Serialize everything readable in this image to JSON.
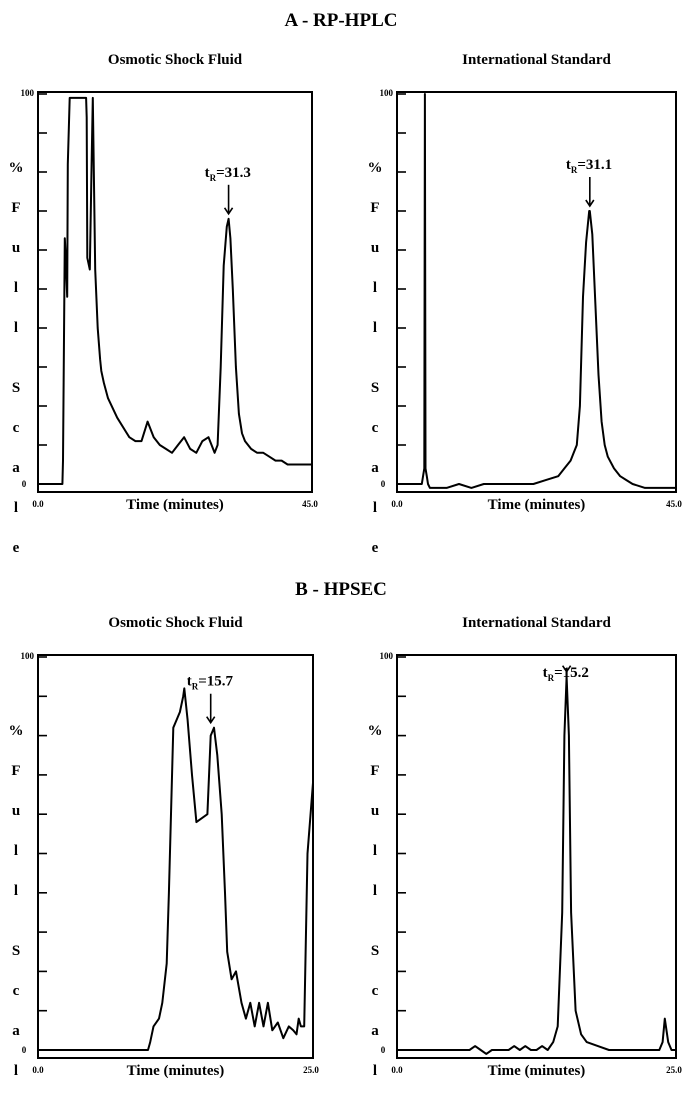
{
  "sections": [
    {
      "title": "A - RP-HPLC"
    },
    {
      "title": "B - HPSEC"
    }
  ],
  "chart_data": [
    {
      "type": "line",
      "section": "A - RP-HPLC",
      "title": "Osmotic Shock Fluid",
      "xlabel": "Time (minutes)",
      "ylabel": "% Full Scale",
      "xlim": [
        0,
        45
      ],
      "ylim": [
        0,
        100
      ],
      "x_tick_labels": [
        "0.0",
        "45.0"
      ],
      "y_tick_labels": [
        "0",
        "100"
      ],
      "annotation": {
        "base": "t",
        "sub": "R",
        "text": "=31.3",
        "x": 31.3
      },
      "series": [
        {
          "x": [
            0,
            4,
            4.1,
            4.4,
            4.5,
            4.8,
            4.9,
            5.2,
            7.9,
            8.0,
            8.1,
            8.5,
            8.8,
            9.0,
            9.1,
            9.4,
            9.8,
            10.2,
            10.4,
            10.8,
            11.5,
            13,
            15,
            16,
            17,
            18,
            19,
            20,
            21,
            22,
            23,
            24,
            25,
            26,
            27,
            28,
            29,
            29.5,
            30,
            30.5,
            31,
            31.3,
            31.6,
            32,
            32.5,
            33,
            33.5,
            34,
            35,
            36,
            37,
            38,
            39,
            40,
            41,
            42,
            43,
            44,
            45
          ],
          "y": [
            0,
            0,
            6,
            63,
            60,
            48,
            82,
            99,
            99,
            94,
            58,
            55,
            82,
            99,
            88,
            55,
            40,
            32,
            29,
            26,
            22,
            17,
            12,
            11,
            11,
            16,
            12,
            10,
            9,
            8,
            10,
            12,
            9,
            8,
            11,
            12,
            8,
            10,
            30,
            56,
            66,
            68,
            63,
            50,
            30,
            18,
            13,
            11,
            9,
            8,
            8,
            7,
            6,
            6,
            5,
            5,
            5,
            5,
            5
          ]
        }
      ]
    },
    {
      "type": "line",
      "section": "A - RP-HPLC",
      "title": "International Standard",
      "xlabel": "Time (minutes)",
      "ylabel": "% Full Scale",
      "xlim": [
        0,
        45
      ],
      "ylim": [
        0,
        100
      ],
      "x_tick_labels": [
        "0.0",
        "45.0"
      ],
      "y_tick_labels": [
        "0",
        "100"
      ],
      "annotation": {
        "base": "t",
        "sub": "R",
        "text": "=31.1",
        "x": 31.1
      },
      "series": [
        {
          "x": [
            0,
            3,
            4,
            4.4,
            4.5,
            4.6,
            4.8,
            5,
            5.3,
            6,
            8,
            10,
            12,
            14,
            16,
            18,
            20,
            22,
            24,
            26,
            27,
            28,
            28.5,
            29,
            29.5,
            30,
            30.5,
            31,
            31.1,
            31.5,
            32,
            32.5,
            33,
            33.5,
            34,
            35,
            36,
            37,
            38,
            40,
            42,
            45
          ],
          "y": [
            0,
            0,
            0,
            4,
            100,
            4,
            2,
            0,
            -1,
            -1,
            -1,
            0,
            -1,
            0,
            0,
            0,
            0,
            0,
            1,
            2,
            4,
            6,
            8,
            10,
            20,
            48,
            62,
            70,
            70,
            64,
            46,
            28,
            16,
            10,
            7,
            4,
            2,
            1,
            0,
            -1,
            -1,
            -1
          ]
        }
      ]
    },
    {
      "type": "line",
      "section": "B - HPSEC",
      "title": "Osmotic Shock Fluid",
      "xlabel": "Time (minutes)",
      "ylabel": "% Full Scale",
      "xlim": [
        0,
        25
      ],
      "ylim": [
        0,
        100
      ],
      "x_tick_labels": [
        "0.0",
        "25.0"
      ],
      "y_tick_labels": [
        "0",
        "100"
      ],
      "annotation": {
        "base": "t",
        "sub": "R",
        "text": "=15.7",
        "x": 15.7
      },
      "series": [
        {
          "x": [
            0,
            10,
            10.2,
            10.5,
            11,
            11.3,
            11.7,
            11.9,
            12.3,
            12.6,
            12.9,
            13.2,
            13.3,
            13.6,
            14,
            14.4,
            15.4,
            15.7,
            16,
            16.3,
            16.7,
            17,
            17.2,
            17.6,
            18,
            18.5,
            18.9,
            19.3,
            19.7,
            20.1,
            20.5,
            20.9,
            21.3,
            21.8,
            22.3,
            22.8,
            23.2,
            23.5,
            23.7,
            23.9,
            24.2,
            24.5,
            25
          ],
          "y": [
            0,
            0,
            2,
            6,
            8,
            12,
            22,
            40,
            82,
            84,
            86,
            90,
            92,
            84,
            70,
            58,
            60,
            80,
            82,
            75,
            60,
            40,
            25,
            18,
            20,
            12,
            8,
            12,
            6,
            12,
            6,
            12,
            5,
            7,
            3,
            6,
            5,
            4,
            8,
            6,
            6,
            50,
            68
          ]
        }
      ]
    },
    {
      "type": "line",
      "section": "B - HPSEC",
      "title": "International Standard",
      "xlabel": "Time (minutes)",
      "ylabel": "% Full Scale",
      "xlim": [
        0,
        25
      ],
      "ylim": [
        0,
        100
      ],
      "x_tick_labels": [
        "0.0",
        "25.0"
      ],
      "y_tick_labels": [
        "0",
        "100"
      ],
      "annotation": {
        "base": "t",
        "sub": "R",
        "text": "=15.2",
        "x": 15.2
      },
      "series": [
        {
          "x": [
            0,
            6,
            6.5,
            7,
            7.5,
            8,
            8.5,
            9,
            10,
            10.5,
            11,
            11.5,
            12,
            12.5,
            13,
            13.5,
            14,
            14.4,
            14.8,
            15.0,
            15.2,
            15.4,
            15.6,
            16,
            16.5,
            17,
            18,
            19,
            20,
            21,
            22,
            23,
            23.5,
            23.8,
            24,
            24.3,
            24.6,
            25
          ],
          "y": [
            0,
            0,
            0,
            1,
            0,
            -1,
            0,
            0,
            0,
            1,
            0,
            1,
            0,
            0,
            1,
            0,
            2,
            6,
            35,
            80,
            95,
            80,
            35,
            10,
            4,
            2,
            1,
            0,
            0,
            0,
            0,
            0,
            0,
            2,
            8,
            2,
            0,
            0
          ]
        }
      ]
    }
  ]
}
